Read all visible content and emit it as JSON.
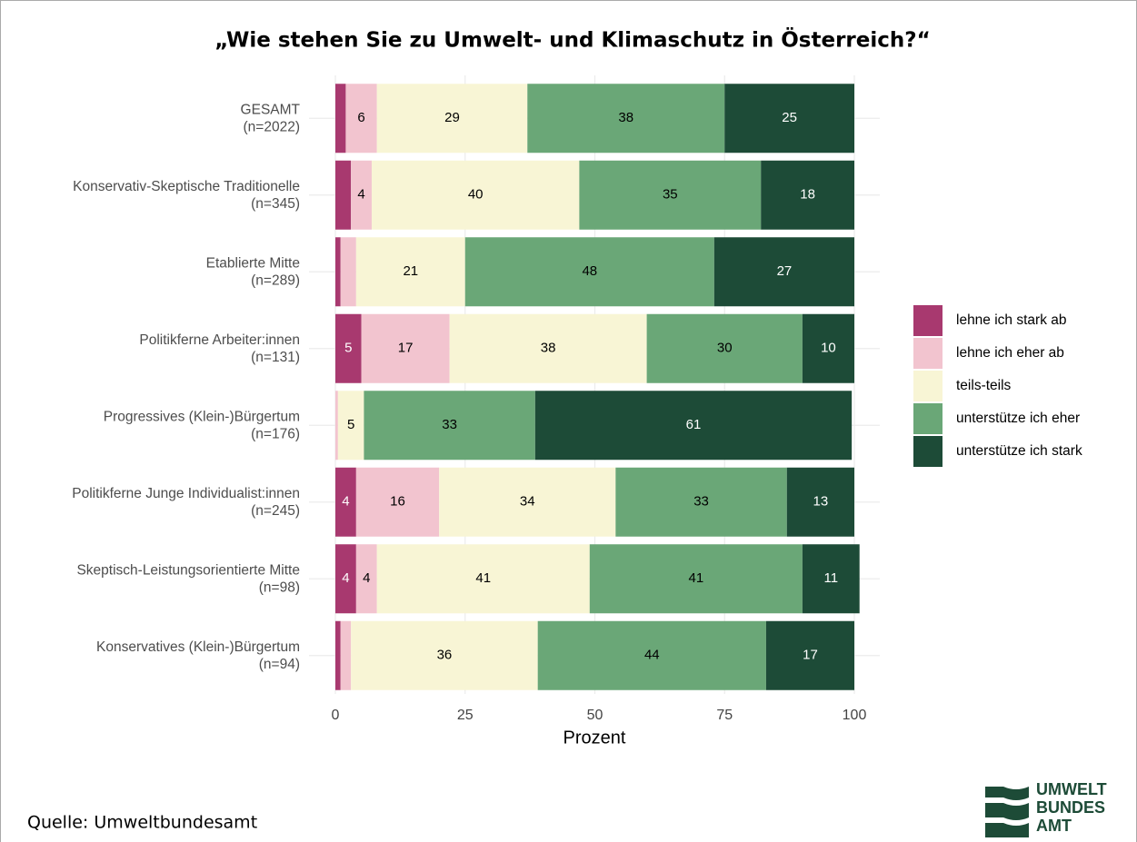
{
  "chart_data": {
    "type": "stacked_barh",
    "title": "„Wie stehen Sie zu Umwelt- und Klimaschutz in Österreich?“",
    "categories": [
      "GESAMT",
      "Konservativ-Skeptische Traditionelle",
      "Etablierte Mitte",
      "Politikferne Arbeiter:innen",
      "Progressives (Klein-)Bürgertum",
      "Politikferne Junge Individualist:innen",
      "Skeptisch-Leistungsorientierte Mitte",
      "Konservatives (Klein-)Bürgertum"
    ],
    "category_sublabels": [
      "(n=2022)",
      "(n=345)",
      "(n=289)",
      "(n=131)",
      "(n=176)",
      "(n=245)",
      "(n=98)",
      "(n=94)"
    ],
    "series": [
      {
        "name": "lehne ich stark ab",
        "color": "#a8396f",
        "values": [
          2,
          3,
          1,
          5,
          0,
          4,
          4,
          1
        ]
      },
      {
        "name": "lehne ich eher ab",
        "color": "#f2c4cf",
        "values": [
          6,
          4,
          3,
          17,
          0.5,
          16,
          4,
          2
        ]
      },
      {
        "name": "teils-teils",
        "color": "#f8f5d5",
        "values": [
          29,
          40,
          21,
          38,
          5,
          34,
          41,
          36
        ]
      },
      {
        "name": "unterstütze ich eher",
        "color": "#6aa777",
        "values": [
          38,
          35,
          48,
          30,
          33,
          33,
          41,
          44
        ]
      },
      {
        "name": "unterstütze ich stark",
        "color": "#1d4b37",
        "values": [
          25,
          18,
          27,
          10,
          61,
          13,
          11,
          17
        ]
      }
    ],
    "xlabel": "Prozent",
    "xlim": [
      0,
      100
    ],
    "xticks": [
      0,
      25,
      50,
      75,
      100
    ],
    "grid": true,
    "legend": "right",
    "source": "Quelle:  Umweltbundesamt",
    "logo": [
      "UMWELT",
      "BUNDES",
      "AMT"
    ]
  }
}
